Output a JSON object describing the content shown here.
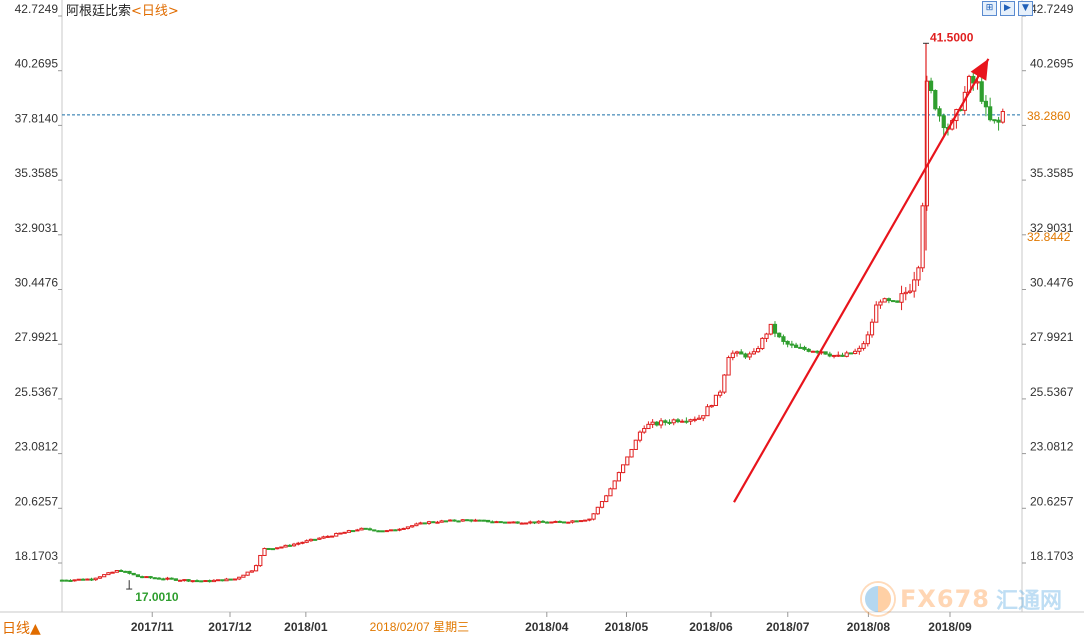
{
  "header": {
    "instrument": "阿根廷比索",
    "period": "<日线>"
  },
  "toolbar": {
    "buttons": [
      {
        "name": "zoom-fit-button",
        "glyph": "⊞"
      },
      {
        "name": "chart-mode-button",
        "glyph": "▶"
      },
      {
        "name": "more-button",
        "glyph": "▼"
      }
    ]
  },
  "footer": {
    "period_selector": "日线▲"
  },
  "crosshair": {
    "date_label": "2018/02/07 星期三"
  },
  "watermark": {
    "brand": "FX678",
    "brand_cn": "汇通网"
  },
  "colors": {
    "up": "#e02020",
    "down": "#2e9e2e",
    "axis_text": "#333333",
    "price_box": "#e07800",
    "arrow": "#e8141c",
    "dashed_line": "#1a6fa6"
  },
  "chart_data": {
    "type": "candlestick",
    "title": "",
    "ylim": [
      16.5,
      43.0
    ],
    "y_ticks": [
      "42.7249",
      "40.2695",
      "37.8140",
      "35.3585",
      "32.9031",
      "30.4476",
      "27.9921",
      "25.5367",
      "23.0812",
      "20.6257",
      "18.1703"
    ],
    "y_tick_values": [
      42.7249,
      40.2695,
      37.814,
      35.3585,
      32.9031,
      30.4476,
      27.9921,
      25.5367,
      23.0812,
      20.6257,
      18.1703
    ],
    "x_ticks": [
      "2017/11",
      "2017/12",
      "2018/01",
      "2018/04",
      "2018/05",
      "2018/06",
      "2018/07",
      "2018/08",
      "2018/09"
    ],
    "last_price": "38.2860",
    "last_price_value": 38.286,
    "secondary_price": "32.8442",
    "secondary_price_value": 32.8442,
    "max_label": "41.5000",
    "max_value": 41.5,
    "min_label": "17.0010",
    "min_value": 17.001,
    "trend_arrow": {
      "from_x": 0.7,
      "from_y": 20.9,
      "to_x": 0.965,
      "to_y": 40.8
    },
    "anchors": [
      [
        0.0,
        17.4
      ],
      [
        0.03,
        17.45
      ],
      [
        0.06,
        17.85
      ],
      [
        0.08,
        17.55
      ],
      [
        0.11,
        17.45
      ],
      [
        0.15,
        17.35
      ],
      [
        0.18,
        17.45
      ],
      [
        0.2,
        17.9
      ],
      [
        0.21,
        18.8
      ],
      [
        0.23,
        18.9
      ],
      [
        0.27,
        19.3
      ],
      [
        0.31,
        19.7
      ],
      [
        0.34,
        19.6
      ],
      [
        0.38,
        20.0
      ],
      [
        0.42,
        20.1
      ],
      [
        0.46,
        20.0
      ],
      [
        0.52,
        20.0
      ],
      [
        0.55,
        20.15
      ],
      [
        0.57,
        21.4
      ],
      [
        0.59,
        23.0
      ],
      [
        0.605,
        24.3
      ],
      [
        0.64,
        24.6
      ],
      [
        0.665,
        24.7
      ],
      [
        0.685,
        25.8
      ],
      [
        0.695,
        27.6
      ],
      [
        0.71,
        27.5
      ],
      [
        0.72,
        27.5
      ],
      [
        0.738,
        28.8
      ],
      [
        0.75,
        28.1
      ],
      [
        0.765,
        27.8
      ],
      [
        0.79,
        27.7
      ],
      [
        0.81,
        27.4
      ],
      [
        0.83,
        27.7
      ],
      [
        0.84,
        28.4
      ],
      [
        0.85,
        30.0
      ],
      [
        0.87,
        29.8
      ],
      [
        0.885,
        30.7
      ],
      [
        0.895,
        32.1
      ],
      [
        0.9,
        39.8
      ],
      [
        0.915,
        38.2
      ],
      [
        0.925,
        37.6
      ],
      [
        0.935,
        38.6
      ],
      [
        0.945,
        39.8
      ],
      [
        0.955,
        39.6
      ],
      [
        0.965,
        38.0
      ],
      [
        0.975,
        37.85
      ],
      [
        0.98,
        38.4
      ]
    ],
    "annotations": [
      "41.5000",
      "17.0010"
    ]
  }
}
